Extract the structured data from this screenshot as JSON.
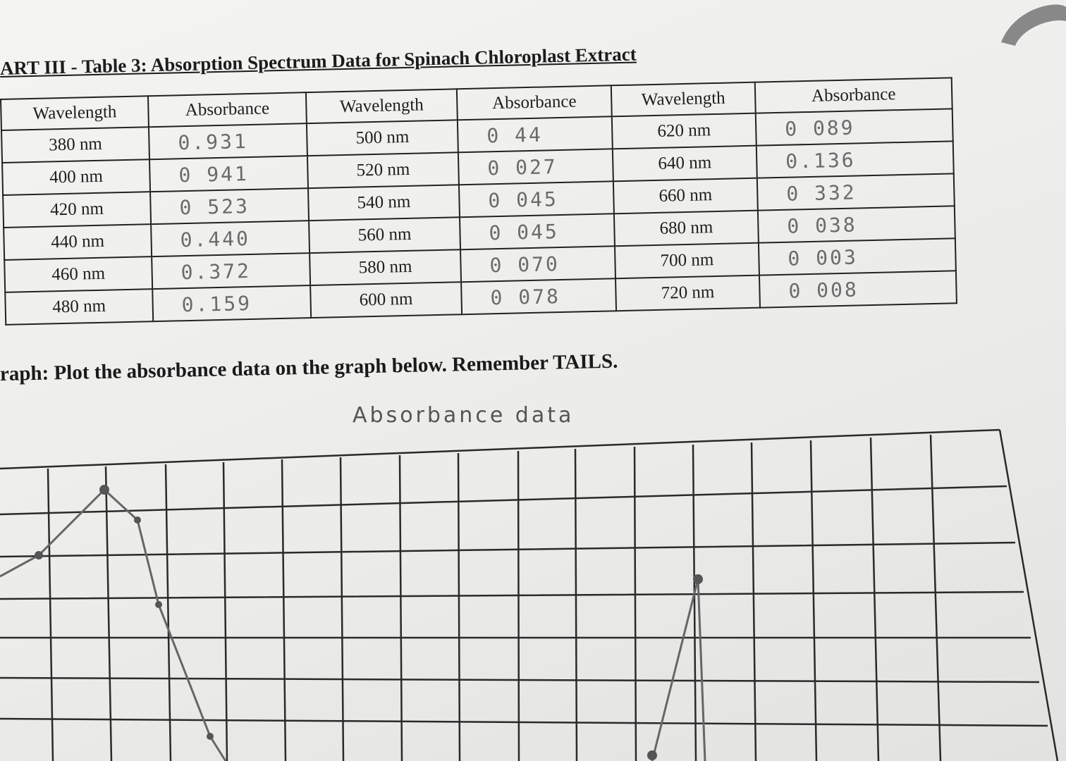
{
  "worksheet": {
    "title": "ART III - Table 3: Absorption Spectrum Data for Spinach Chloroplast Extract",
    "table": {
      "headers": [
        "Wavelength",
        "Absorbance",
        "Wavelength",
        "Absorbance",
        "Wavelength",
        "Absorbance"
      ],
      "rows": [
        [
          "380 nm",
          "0.931",
          "500 nm",
          "0 44",
          "620 nm",
          "0 089"
        ],
        [
          "400 nm",
          "0 941",
          "520 nm",
          "0 027",
          "640 nm",
          "0.136"
        ],
        [
          "420 nm",
          "0 523",
          "540 nm",
          "0 045",
          "660 nm",
          "0 332"
        ],
        [
          "440 nm",
          "0.440",
          "560 nm",
          "0 045",
          "680 nm",
          "0 038"
        ],
        [
          "460 nm",
          "0.372",
          "580 nm",
          "0 070",
          "700 nm",
          "0 003"
        ],
        [
          "480 nm",
          "0.159",
          "600 nm",
          "0 078",
          "720 nm",
          "0 008"
        ]
      ]
    },
    "graph_instruction": "raph: Plot the absorbance data on the graph below. Remember TAILS.",
    "graph_title": "Absorbance data"
  }
}
